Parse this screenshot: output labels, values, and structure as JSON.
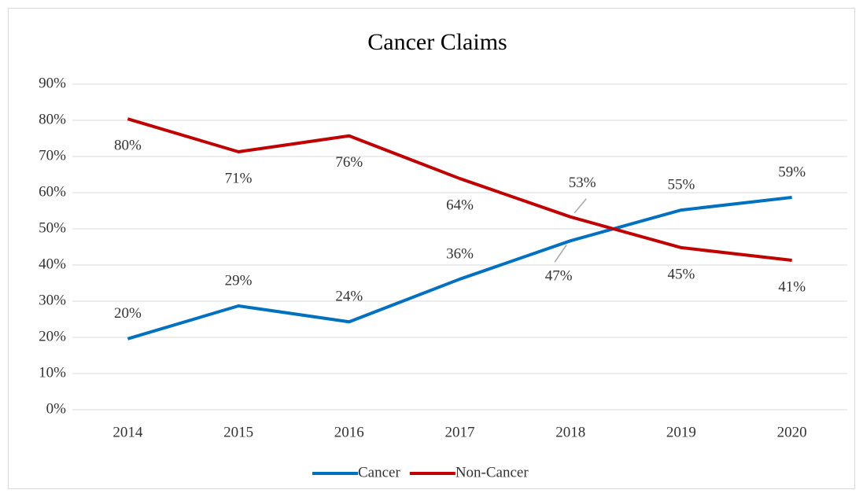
{
  "chart_data": {
    "type": "line",
    "title": "Cancer Claims",
    "categories": [
      "2014",
      "2015",
      "2016",
      "2017",
      "2018",
      "2019",
      "2020"
    ],
    "series": [
      {
        "name": "Cancer",
        "color": "#0070c0",
        "values": [
          19.6,
          28.7,
          24.3,
          36.1,
          46.7,
          55.2,
          58.7
        ],
        "value_labels": [
          "20%",
          "29%",
          "24%",
          "36%",
          "47%",
          "55%",
          "59%"
        ]
      },
      {
        "name": "Non-Cancer",
        "color": "#c00000",
        "values": [
          80.4,
          71.3,
          75.7,
          63.9,
          53.3,
          44.8,
          41.3
        ],
        "value_labels": [
          "80%",
          "71%",
          "76%",
          "64%",
          "53%",
          "45%",
          "41%"
        ]
      }
    ],
    "ylim": [
      0,
      90
    ],
    "yticks": [
      {
        "value": 0,
        "label": "0%"
      },
      {
        "value": 10,
        "label": "10%"
      },
      {
        "value": 20,
        "label": "20%"
      },
      {
        "value": 30,
        "label": "30%"
      },
      {
        "value": 40,
        "label": "40%"
      },
      {
        "value": 50,
        "label": "50%"
      },
      {
        "value": 60,
        "label": "60%"
      },
      {
        "value": 70,
        "label": "70%"
      },
      {
        "value": 80,
        "label": "80%"
      },
      {
        "value": 90,
        "label": "90%"
      }
    ],
    "grid": true,
    "legend": "bottom"
  }
}
